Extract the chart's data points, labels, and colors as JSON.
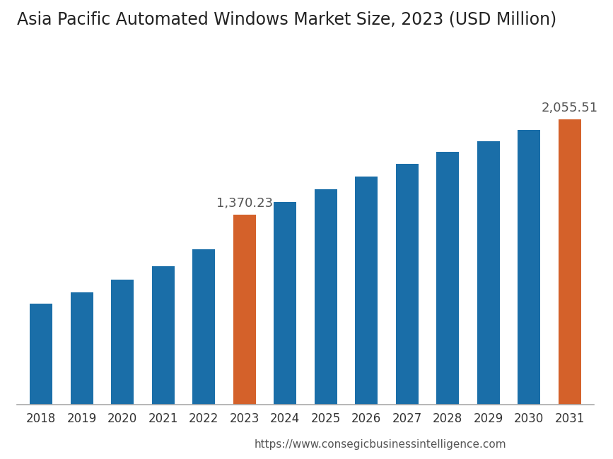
{
  "title": "Asia Pacific Automated Windows Market Size, 2023 (USD Million)",
  "years": [
    2018,
    2019,
    2020,
    2021,
    2022,
    2023,
    2024,
    2025,
    2026,
    2027,
    2028,
    2029,
    2030,
    2031
  ],
  "values": [
    730.0,
    810.0,
    900.0,
    1000.0,
    1120.0,
    1370.23,
    1460.0,
    1550.0,
    1645.0,
    1735.0,
    1820.0,
    1900.0,
    1980.0,
    2055.51
  ],
  "bar_colors": [
    "#1a6ea8",
    "#1a6ea8",
    "#1a6ea8",
    "#1a6ea8",
    "#1a6ea8",
    "#d4612a",
    "#1a6ea8",
    "#1a6ea8",
    "#1a6ea8",
    "#1a6ea8",
    "#1a6ea8",
    "#1a6ea8",
    "#1a6ea8",
    "#d4612a"
  ],
  "labeled_bars": [
    5,
    13
  ],
  "labels": [
    "1,370.23",
    "2,055.51"
  ],
  "background_color": "#ffffff",
  "text_color": "#555555",
  "url_text": "https://www.consegicbusinessintelligence.com",
  "title_fontsize": 17,
  "tick_fontsize": 12,
  "label_fontsize": 13,
  "url_fontsize": 11,
  "ylim": [
    0,
    2600
  ],
  "bar_width": 0.55
}
